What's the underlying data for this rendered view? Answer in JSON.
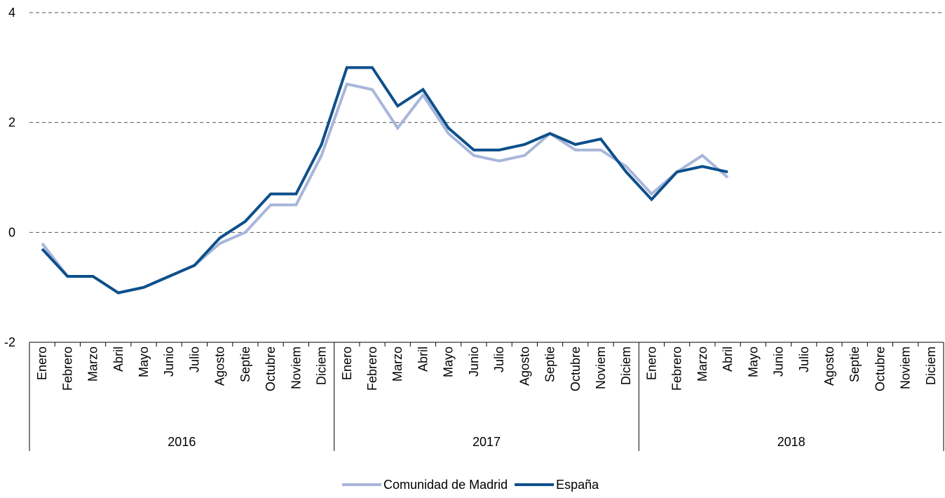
{
  "chart_data": {
    "type": "line",
    "title": "",
    "xlabel": "",
    "ylabel": "",
    "ylim": [
      -2,
      4
    ],
    "yticks": [
      -2,
      0,
      2,
      4
    ],
    "grid": true,
    "legend_position": "bottom-center",
    "months": [
      "Enero",
      "Febrero",
      "Marzo",
      "Abril",
      "Mayo",
      "Junio",
      "Julio",
      "Agosto",
      "Septie",
      "Octubre",
      "Noviem",
      "Diciem"
    ],
    "years": [
      "2016",
      "2017",
      "2018"
    ],
    "series": [
      {
        "name": "Comunidad de Madrid",
        "color": "#a9b6da",
        "values": [
          -0.2,
          -0.8,
          -0.8,
          -1.1,
          -1.0,
          -0.8,
          -0.6,
          -0.2,
          0.0,
          0.5,
          0.5,
          1.4,
          2.7,
          2.6,
          1.9,
          2.5,
          1.8,
          1.4,
          1.3,
          1.4,
          1.8,
          1.5,
          1.5,
          1.2,
          0.7,
          1.1,
          1.4,
          1.0
        ]
      },
      {
        "name": "España",
        "color": "#0d4f8b",
        "values": [
          -0.3,
          -0.8,
          -0.8,
          -1.1,
          -1.0,
          -0.8,
          -0.6,
          -0.1,
          0.2,
          0.7,
          0.7,
          1.6,
          3.0,
          3.0,
          2.3,
          2.6,
          1.9,
          1.5,
          1.5,
          1.6,
          1.8,
          1.6,
          1.7,
          1.1,
          0.6,
          1.1,
          1.2,
          1.1
        ]
      }
    ]
  }
}
